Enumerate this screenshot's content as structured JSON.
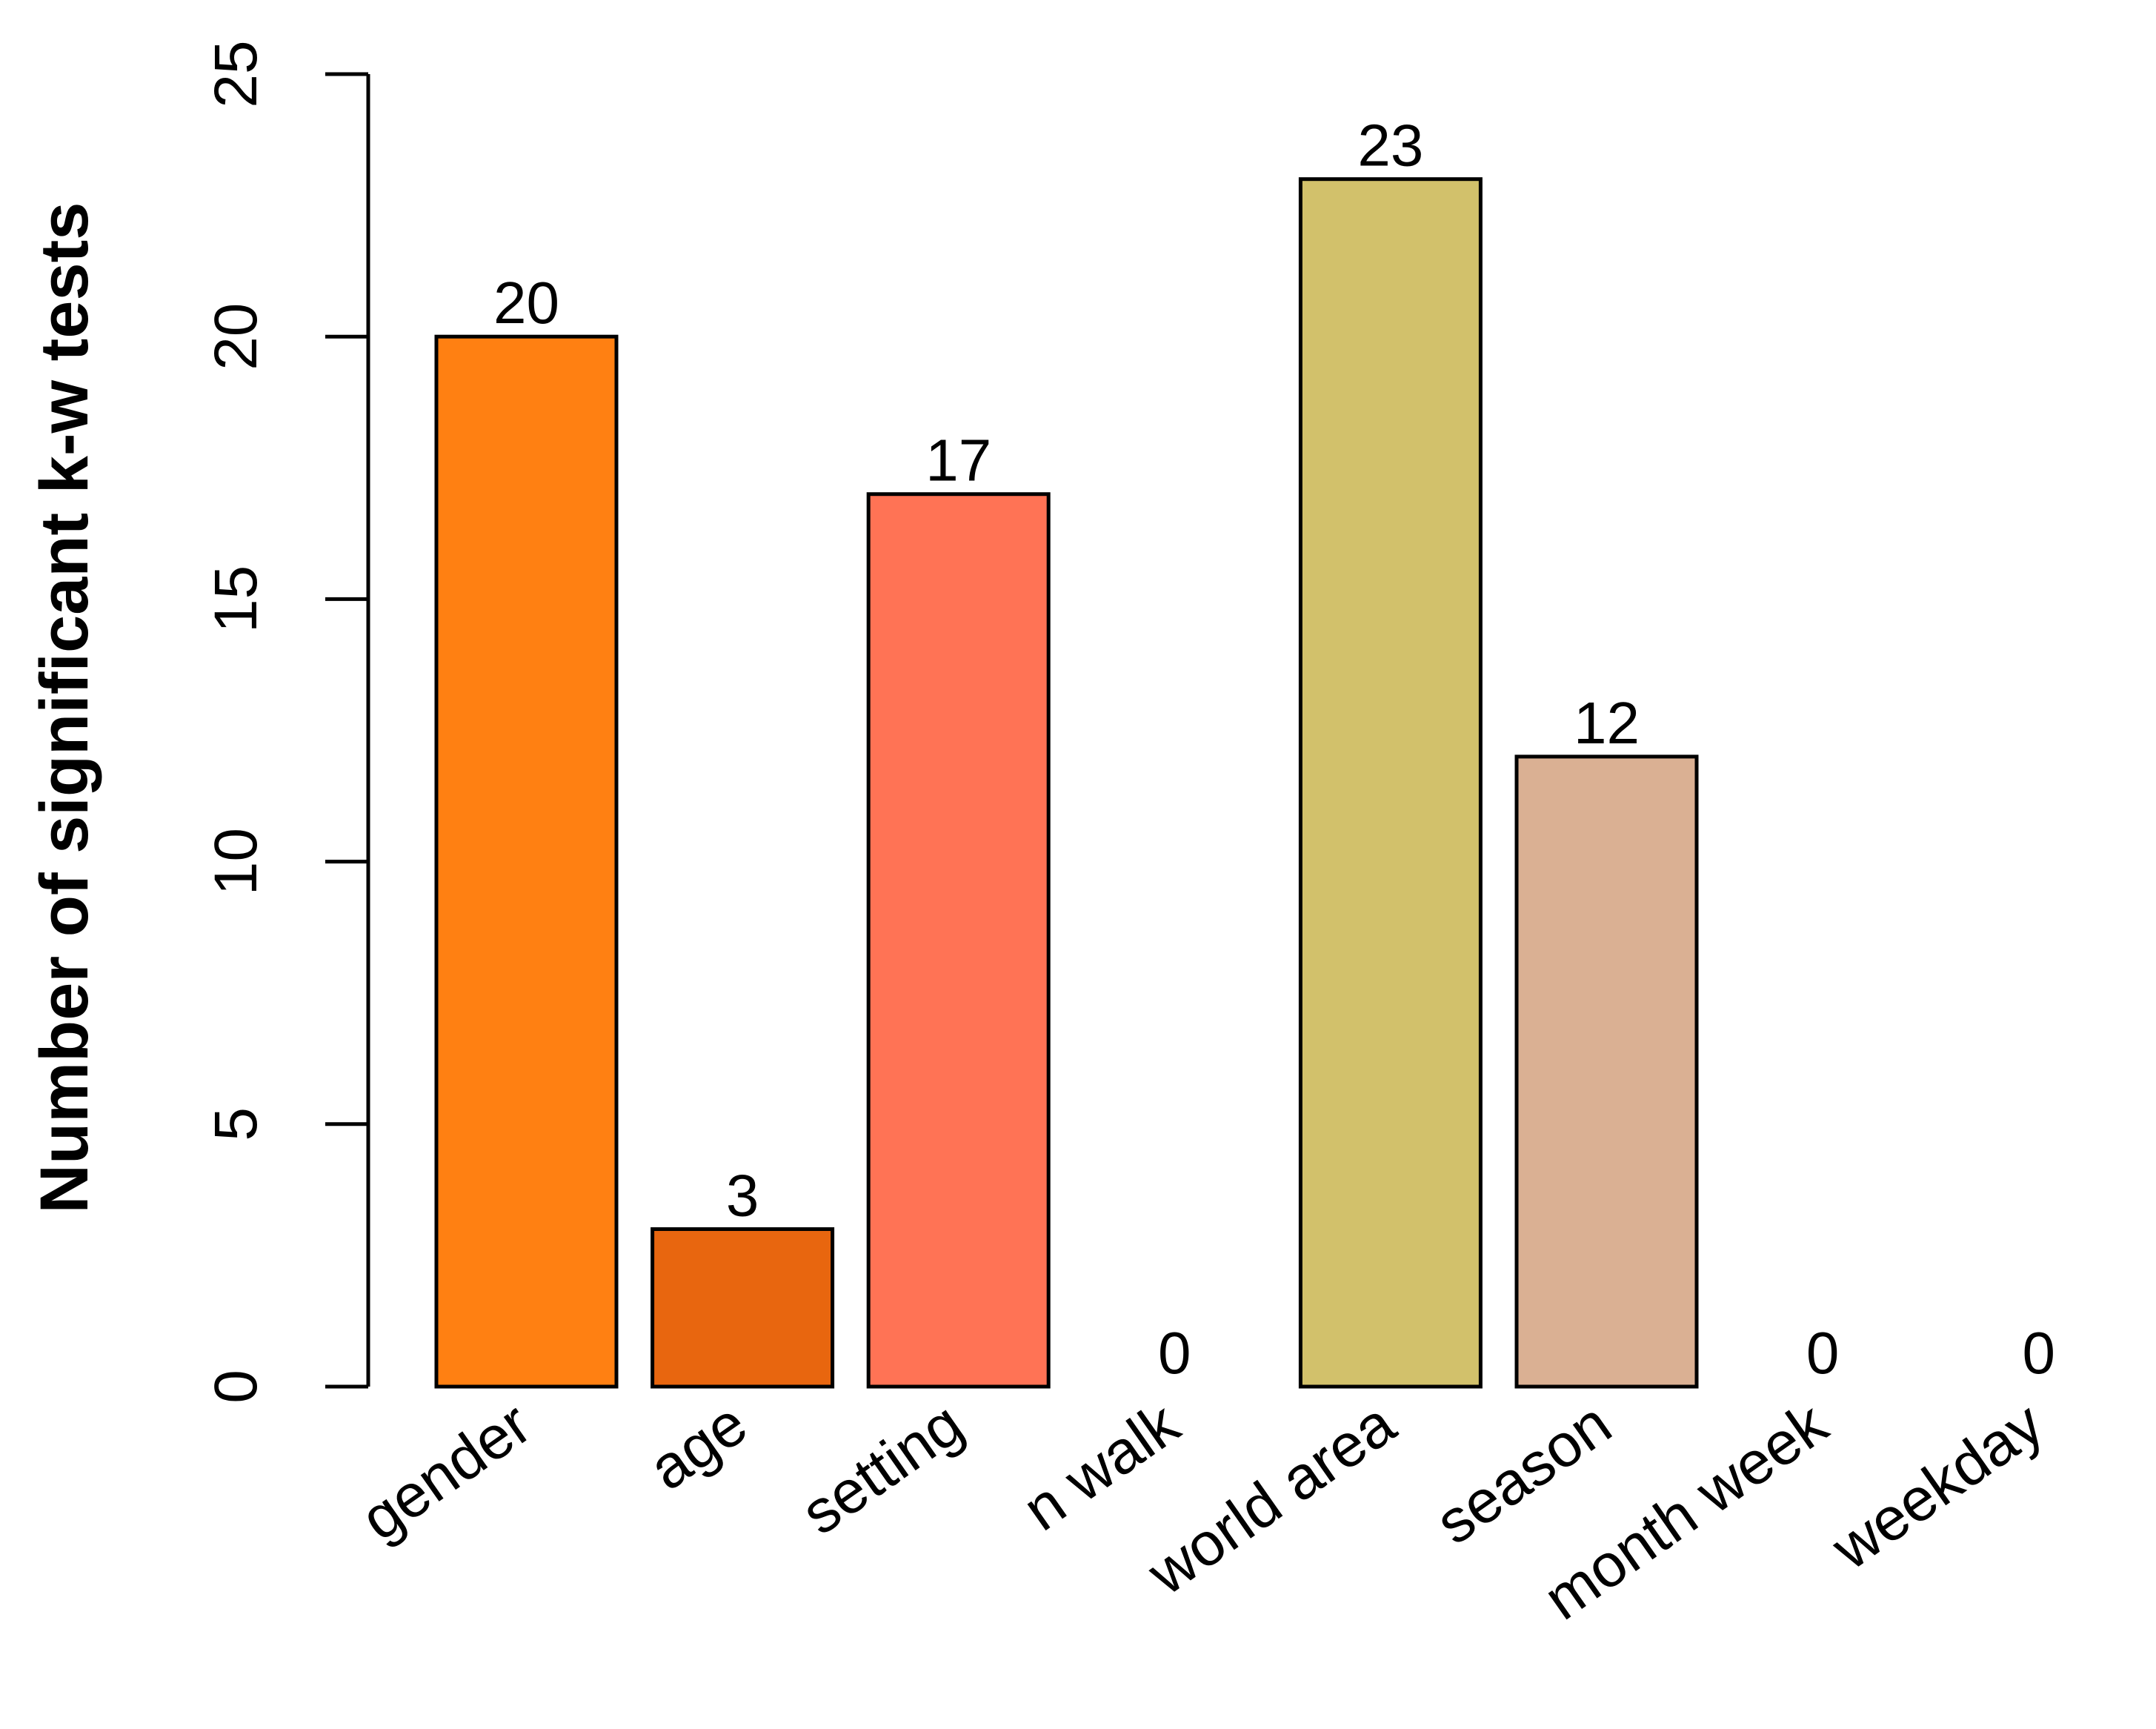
{
  "chart_data": {
    "type": "bar",
    "title": "",
    "xlabel": "",
    "ylabel": "Number of significant k-w tests",
    "categories": [
      "gender",
      "age",
      "setting",
      "n walk",
      "world area",
      "season",
      "month week",
      "weekday"
    ],
    "values": [
      20,
      3,
      17,
      0,
      23,
      12,
      0,
      0
    ],
    "data_labels": [
      "20",
      "3",
      "17",
      "0",
      "23",
      "12",
      "0",
      "0"
    ],
    "colors": [
      "#FF8012",
      "#E8660F",
      "#FF7355",
      "#FFFFFF",
      "#D2C16B",
      "#DAB093",
      "#FFFFFF",
      "#FFFFFF"
    ],
    "ylim": [
      0,
      25
    ],
    "yticks": [
      0,
      5,
      10,
      15,
      20,
      25
    ],
    "ytick_labels": [
      "0",
      "5",
      "10",
      "15",
      "20",
      "25"
    ],
    "grid": false,
    "legend": "none"
  }
}
